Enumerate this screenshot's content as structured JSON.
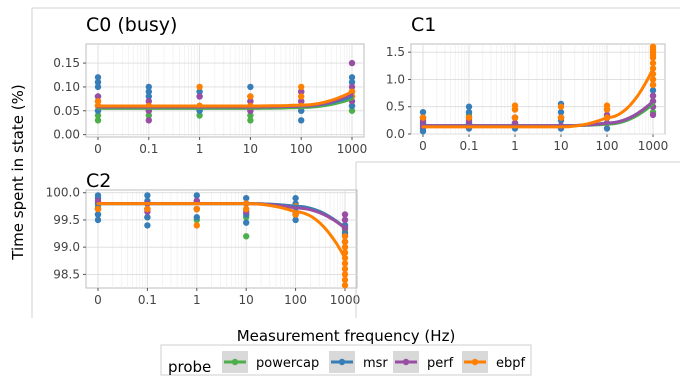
{
  "ylabel": "Time spent in state (%)",
  "xlabel": "Measurement frequency (Hz)",
  "legend": {
    "title": "probe",
    "items": [
      {
        "label": "powercap",
        "color": "#4daf4a"
      },
      {
        "label": "msr",
        "color": "#377eb8"
      },
      {
        "label": "perf",
        "color": "#984ea3"
      },
      {
        "label": "ebpf",
        "color": "#ff7f00"
      }
    ]
  },
  "chart_data": [
    {
      "type": "scatter",
      "title": "C0 (busy)",
      "x_ticks": [
        "0",
        "0.1",
        "1",
        "10",
        "100",
        "1000"
      ],
      "y_ticks": [
        "0.00",
        "0.05",
        "0.10",
        "0.15"
      ],
      "ylim": [
        -0.005,
        0.19
      ],
      "grid": true,
      "series": [
        {
          "name": "powercap",
          "points": [
            [
              0,
              0.03
            ],
            [
              0,
              0.04
            ],
            [
              0,
              0.05
            ],
            [
              0,
              0.06
            ],
            [
              1,
              0.04
            ],
            [
              1,
              0.05
            ],
            [
              1,
              0.06
            ],
            [
              2,
              0.04
            ],
            [
              2,
              0.05
            ],
            [
              2,
              0.06
            ],
            [
              3,
              0.03
            ],
            [
              3,
              0.04
            ],
            [
              3,
              0.06
            ],
            [
              4,
              0.05
            ],
            [
              4,
              0.06
            ],
            [
              5,
              0.05
            ],
            [
              5,
              0.06
            ],
            [
              5,
              0.08
            ]
          ],
          "trend": [
            0.055,
            0.055,
            0.055,
            0.055,
            0.057,
            0.075
          ]
        },
        {
          "name": "msr",
          "points": [
            [
              0,
              0.05
            ],
            [
              0,
              0.07
            ],
            [
              0,
              0.08
            ],
            [
              0,
              0.1
            ],
            [
              0,
              0.11
            ],
            [
              0,
              0.12
            ],
            [
              1,
              0.06
            ],
            [
              1,
              0.08
            ],
            [
              1,
              0.09
            ],
            [
              1,
              0.1
            ],
            [
              2,
              0.05
            ],
            [
              2,
              0.06
            ],
            [
              2,
              0.08
            ],
            [
              2,
              0.09
            ],
            [
              3,
              0.05
            ],
            [
              3,
              0.07
            ],
            [
              3,
              0.08
            ],
            [
              3,
              0.1
            ],
            [
              4,
              0.03
            ],
            [
              4,
              0.05
            ],
            [
              4,
              0.07
            ],
            [
              4,
              0.09
            ],
            [
              5,
              0.06
            ],
            [
              5,
              0.09
            ],
            [
              5,
              0.11
            ],
            [
              5,
              0.12
            ]
          ],
          "trend": [
            0.058,
            0.058,
            0.058,
            0.058,
            0.06,
            0.08
          ]
        },
        {
          "name": "perf",
          "points": [
            [
              0,
              0.06
            ],
            [
              0,
              0.08
            ],
            [
              1,
              0.03
            ],
            [
              1,
              0.05
            ],
            [
              1,
              0.07
            ],
            [
              2,
              0.06
            ],
            [
              2,
              0.08
            ],
            [
              3,
              0.05
            ],
            [
              3,
              0.07
            ],
            [
              4,
              0.07
            ],
            [
              4,
              0.09
            ],
            [
              5,
              0.07
            ],
            [
              5,
              0.1
            ],
            [
              5,
              0.15
            ]
          ],
          "trend": [
            0.058,
            0.058,
            0.058,
            0.058,
            0.06,
            0.085
          ]
        },
        {
          "name": "ebpf",
          "points": [
            [
              0,
              0.06
            ],
            [
              0,
              0.07
            ],
            [
              1,
              0.06
            ],
            [
              2,
              0.06
            ],
            [
              2,
              0.1
            ],
            [
              3,
              0.06
            ],
            [
              3,
              0.08
            ],
            [
              4,
              0.06
            ],
            [
              4,
              0.08
            ],
            [
              4,
              0.1
            ],
            [
              5,
              0.08
            ],
            [
              5,
              0.09
            ]
          ],
          "trend": [
            0.06,
            0.06,
            0.06,
            0.06,
            0.062,
            0.09
          ]
        }
      ]
    },
    {
      "type": "scatter",
      "title": "C1",
      "x_ticks": [
        "0",
        "0.1",
        "1",
        "10",
        "100",
        "1000"
      ],
      "y_ticks": [
        "0.0",
        "0.5",
        "1.0",
        "1.5"
      ],
      "ylim": [
        0,
        1.65
      ],
      "grid": true,
      "series": [
        {
          "name": "powercap",
          "points": [
            [
              0,
              0.2
            ],
            [
              0,
              0.3
            ],
            [
              1,
              0.2
            ],
            [
              1,
              0.35
            ],
            [
              2,
              0.2
            ],
            [
              2,
              0.3
            ],
            [
              3,
              0.15
            ],
            [
              3,
              0.3
            ],
            [
              4,
              0.2
            ],
            [
              4,
              0.3
            ],
            [
              5,
              0.4
            ],
            [
              5,
              0.6
            ]
          ],
          "trend": [
            0.15,
            0.15,
            0.15,
            0.15,
            0.18,
            0.55
          ]
        },
        {
          "name": "msr",
          "points": [
            [
              0,
              0.05
            ],
            [
              0,
              0.1
            ],
            [
              0,
              0.2
            ],
            [
              0,
              0.3
            ],
            [
              0,
              0.4
            ],
            [
              1,
              0.1
            ],
            [
              1,
              0.2
            ],
            [
              1,
              0.3
            ],
            [
              1,
              0.4
            ],
            [
              1,
              0.5
            ],
            [
              2,
              0.1
            ],
            [
              2,
              0.2
            ],
            [
              2,
              0.3
            ],
            [
              2,
              0.45
            ],
            [
              3,
              0.1
            ],
            [
              3,
              0.25
            ],
            [
              3,
              0.4
            ],
            [
              3,
              0.55
            ],
            [
              4,
              0.1
            ],
            [
              4,
              0.2
            ],
            [
              4,
              0.3
            ],
            [
              4,
              0.45
            ],
            [
              5,
              0.5
            ],
            [
              5,
              0.7
            ],
            [
              5,
              0.8
            ],
            [
              5,
              0.9
            ]
          ],
          "trend": [
            0.15,
            0.15,
            0.15,
            0.15,
            0.2,
            0.6
          ]
        },
        {
          "name": "perf",
          "points": [
            [
              0,
              0.15
            ],
            [
              0,
              0.25
            ],
            [
              1,
              0.15
            ],
            [
              1,
              0.25
            ],
            [
              2,
              0.2
            ],
            [
              2,
              0.3
            ],
            [
              3,
              0.15
            ],
            [
              3,
              0.3
            ],
            [
              4,
              0.2
            ],
            [
              4,
              0.35
            ],
            [
              5,
              0.35
            ],
            [
              5,
              0.5
            ],
            [
              5,
              0.6
            ],
            [
              5,
              0.7
            ]
          ],
          "trend": [
            0.15,
            0.15,
            0.15,
            0.15,
            0.2,
            0.6
          ]
        },
        {
          "name": "ebpf",
          "points": [
            [
              0,
              0.3
            ],
            [
              1,
              0.3
            ],
            [
              2,
              0.3
            ],
            [
              2,
              0.45
            ],
            [
              2,
              0.52
            ],
            [
              3,
              0.3
            ],
            [
              3,
              0.5
            ],
            [
              4,
              0.3
            ],
            [
              4,
              0.45
            ],
            [
              4,
              0.52
            ],
            [
              5,
              0.9
            ],
            [
              5,
              1.0
            ],
            [
              5,
              1.1
            ],
            [
              5,
              1.2
            ],
            [
              5,
              1.3
            ],
            [
              5,
              1.4
            ],
            [
              5,
              1.45
            ],
            [
              5,
              1.5
            ],
            [
              5,
              1.55
            ],
            [
              5,
              1.6
            ]
          ],
          "trend": [
            0.13,
            0.13,
            0.13,
            0.13,
            0.3,
            1.2
          ]
        }
      ]
    },
    {
      "type": "scatter",
      "title": "C2",
      "x_ticks": [
        "0",
        "0.1",
        "1",
        "10",
        "100",
        "1000"
      ],
      "y_ticks": [
        "98.5",
        "99.0",
        "99.5",
        "100.0"
      ],
      "ylim": [
        98.25,
        100.05
      ],
      "grid": true,
      "series": [
        {
          "name": "powercap",
          "points": [
            [
              0,
              99.6
            ],
            [
              0,
              99.75
            ],
            [
              1,
              99.55
            ],
            [
              1,
              99.7
            ],
            [
              2,
              99.5
            ],
            [
              2,
              99.7
            ],
            [
              3,
              99.2
            ],
            [
              3,
              99.55
            ],
            [
              4,
              99.6
            ],
            [
              4,
              99.75
            ],
            [
              5,
              99.3
            ],
            [
              5,
              99.4
            ]
          ],
          "trend": [
            99.8,
            99.8,
            99.8,
            99.8,
            99.75,
            99.35
          ]
        },
        {
          "name": "msr",
          "points": [
            [
              0,
              99.5
            ],
            [
              0,
              99.6
            ],
            [
              0,
              99.7
            ],
            [
              0,
              99.8
            ],
            [
              0,
              99.9
            ],
            [
              0,
              99.95
            ],
            [
              1,
              99.4
            ],
            [
              1,
              99.55
            ],
            [
              1,
              99.7
            ],
            [
              1,
              99.85
            ],
            [
              1,
              99.95
            ],
            [
              2,
              99.55
            ],
            [
              2,
              99.7
            ],
            [
              2,
              99.85
            ],
            [
              2,
              99.95
            ],
            [
              3,
              99.45
            ],
            [
              3,
              99.6
            ],
            [
              3,
              99.8
            ],
            [
              3,
              99.9
            ],
            [
              4,
              99.5
            ],
            [
              4,
              99.65
            ],
            [
              4,
              99.8
            ],
            [
              4,
              99.9
            ],
            [
              5,
              99.1
            ],
            [
              5,
              99.25
            ],
            [
              5,
              99.4
            ]
          ],
          "trend": [
            99.8,
            99.8,
            99.8,
            99.8,
            99.75,
            99.35
          ]
        },
        {
          "name": "perf",
          "points": [
            [
              0,
              99.7
            ],
            [
              0,
              99.85
            ],
            [
              1,
              99.65
            ],
            [
              1,
              99.8
            ],
            [
              2,
              99.7
            ],
            [
              2,
              99.85
            ],
            [
              3,
              99.65
            ],
            [
              3,
              99.8
            ],
            [
              4,
              99.6
            ],
            [
              4,
              99.75
            ],
            [
              5,
              99.2
            ],
            [
              5,
              99.35
            ],
            [
              5,
              99.5
            ],
            [
              5,
              99.6
            ]
          ],
          "trend": [
            99.8,
            99.8,
            99.8,
            99.8,
            99.72,
            99.35
          ]
        },
        {
          "name": "ebpf",
          "points": [
            [
              0,
              99.7
            ],
            [
              1,
              99.7
            ],
            [
              2,
              99.4
            ],
            [
              2,
              99.7
            ],
            [
              3,
              99.7
            ],
            [
              3,
              99.8
            ],
            [
              4,
              99.6
            ],
            [
              4,
              99.75
            ],
            [
              5,
              98.3
            ],
            [
              5,
              98.4
            ],
            [
              5,
              98.5
            ],
            [
              5,
              98.6
            ],
            [
              5,
              98.7
            ],
            [
              5,
              98.8
            ],
            [
              5,
              98.9
            ],
            [
              5,
              99.0
            ],
            [
              5,
              99.1
            ],
            [
              5,
              99.2
            ]
          ],
          "trend": [
            99.8,
            99.8,
            99.8,
            99.8,
            99.65,
            98.8
          ]
        }
      ]
    }
  ]
}
